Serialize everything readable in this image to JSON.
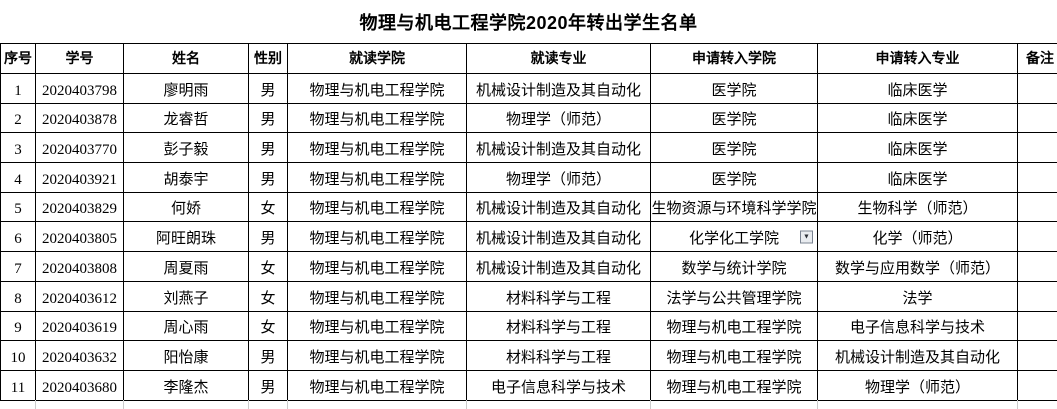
{
  "title": "物理与机电工程学院2020年转出学生名单",
  "table": {
    "headers": [
      "序号",
      "学号",
      "姓名",
      "性别",
      "就读学院",
      "就读专业",
      "申请转入学院",
      "申请转入专业",
      "备注"
    ],
    "rows": [
      {
        "cells": [
          "1",
          "2020403798",
          "廖明雨",
          "男",
          "物理与机电工程学院",
          "机械设计制造及其自动化",
          "医学院",
          "临床医学",
          ""
        ]
      },
      {
        "cells": [
          "2",
          "2020403878",
          "龙睿哲",
          "男",
          "物理与机电工程学院",
          "物理学（师范）",
          "医学院",
          "临床医学",
          ""
        ]
      },
      {
        "cells": [
          "3",
          "2020403770",
          "彭子毅",
          "男",
          "物理与机电工程学院",
          "机械设计制造及其自动化",
          "医学院",
          "临床医学",
          ""
        ]
      },
      {
        "cells": [
          "4",
          "2020403921",
          "胡泰宇",
          "男",
          "物理与机电工程学院",
          "物理学（师范）",
          "医学院",
          "临床医学",
          ""
        ]
      },
      {
        "cells": [
          "5",
          "2020403829",
          "何娇",
          "女",
          "物理与机电工程学院",
          "机械设计制造及其自动化",
          "生物资源与环境科学学院",
          "生物科学（师范）",
          ""
        ]
      },
      {
        "cells": [
          "6",
          "2020403805",
          "阿旺朗珠",
          "男",
          "物理与机电工程学院",
          "机械设计制造及其自动化",
          "化学化工学院",
          "化学（师范）",
          ""
        ],
        "dropdown_cell": 6
      },
      {
        "cells": [
          "7",
          "2020403808",
          "周夏雨",
          "女",
          "物理与机电工程学院",
          "机械设计制造及其自动化",
          "数学与统计学院",
          "数学与应用数学（师范）",
          ""
        ]
      },
      {
        "cells": [
          "8",
          "2020403612",
          "刘燕子",
          "女",
          "物理与机电工程学院",
          "材料科学与工程",
          "法学与公共管理学院",
          "法学",
          ""
        ]
      },
      {
        "cells": [
          "9",
          "2020403619",
          "周心雨",
          "女",
          "物理与机电工程学院",
          "材料科学与工程",
          "物理与机电工程学院",
          "电子信息科学与技术",
          ""
        ]
      },
      {
        "cells": [
          "10",
          "2020403632",
          "阳怡康",
          "男",
          "物理与机电工程学院",
          "材料科学与工程",
          "物理与机电工程学院",
          "机械设计制造及其自动化",
          ""
        ]
      },
      {
        "cells": [
          "11",
          "2020403680",
          "李隆杰",
          "男",
          "物理与机电工程学院",
          "电子信息科学与技术",
          "物理与机电工程学院",
          "物理学（师范）",
          ""
        ]
      }
    ]
  },
  "icons": {
    "dropdown_arrow": "▼"
  },
  "colors": {
    "background": "#ffffff",
    "text": "#000000",
    "grid_border": "#000000",
    "gridline_stub": "#cccccc",
    "dropdown_button_bg": "#e9ecf0",
    "dropdown_button_border": "#7a8391"
  }
}
